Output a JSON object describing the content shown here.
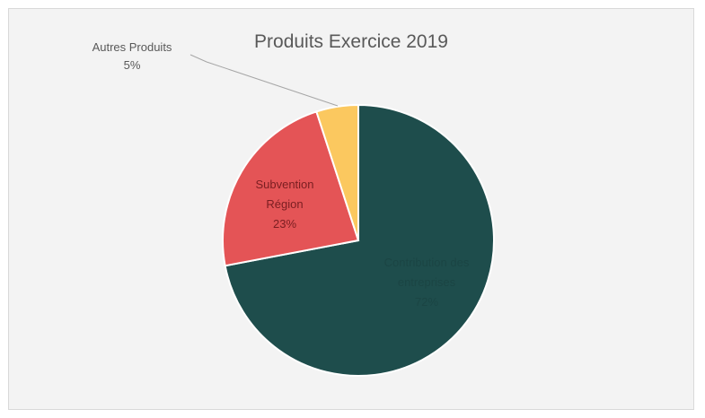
{
  "chart_data": {
    "type": "pie",
    "title": "Produits Exercice 2019",
    "start_angle_deg": 0,
    "direction": "clockwise",
    "slices": [
      {
        "label_lines": [
          "Contribution des",
          "entreprises"
        ],
        "value": 72,
        "display_value": "72%",
        "color": "#1e4d4c",
        "label_color": "#1b4544",
        "label_position": "inside"
      },
      {
        "label_lines": [
          "Subvention",
          "Région"
        ],
        "value": 23,
        "display_value": "23%",
        "color": "#e45456",
        "label_color": "#7a1e21",
        "label_position": "inside"
      },
      {
        "label_lines": [
          "Autres Produits"
        ],
        "value": 5,
        "display_value": "5%",
        "color": "#fbc85f",
        "label_color": "#595959",
        "label_position": "outside"
      }
    ]
  }
}
